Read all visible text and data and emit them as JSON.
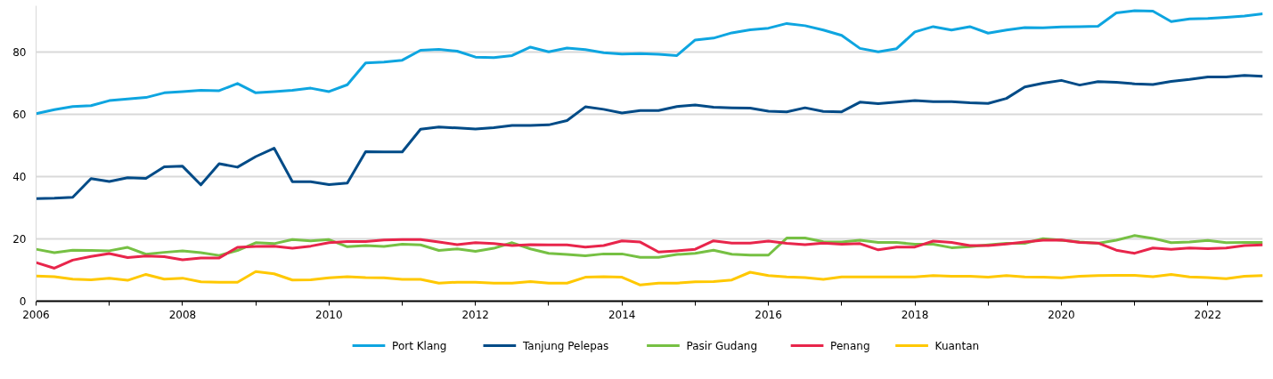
{
  "chart_data": {
    "type": "line",
    "x": [
      2006,
      2006.25,
      2006.5,
      2006.75,
      2007,
      2007.25,
      2007.5,
      2007.75,
      2008,
      2008.25,
      2008.5,
      2008.75,
      2009,
      2009.25,
      2009.5,
      2009.75,
      2010,
      2010.25,
      2010.5,
      2010.75,
      2011,
      2011.25,
      2011.5,
      2011.75,
      2012,
      2012.25,
      2012.5,
      2012.75,
      2013,
      2013.25,
      2013.5,
      2013.75,
      2014,
      2014.25,
      2014.5,
      2014.75,
      2015,
      2015.25,
      2015.5,
      2015.75,
      2016,
      2016.25,
      2016.5,
      2016.75,
      2017,
      2017.25,
      2017.5,
      2017.75,
      2018,
      2018.25,
      2018.5,
      2018.75,
      2019,
      2019.25,
      2019.5,
      2019.75,
      2020,
      2020.25,
      2020.5,
      2020.75,
      2021,
      2021.25,
      2021.5,
      2021.75,
      2022,
      2022.25,
      2022.5,
      2022.75
    ],
    "series": [
      {
        "name": "Port Klang",
        "color": "#0ea5e0",
        "values": [
          60.3,
          61.6,
          62.6,
          62.9,
          64.5,
          65,
          65.5,
          67,
          67.4,
          67.8,
          67.7,
          70,
          67,
          67.4,
          67.8,
          68.5,
          67.4,
          69.6,
          76.6,
          76.9,
          77.5,
          80.7,
          81,
          80.4,
          78.5,
          78.3,
          79,
          81.7,
          80.2,
          81.4,
          80.9,
          79.9,
          79.5,
          79.6,
          79.4,
          79,
          84,
          84.6,
          86.3,
          87.3,
          87.8,
          89.3,
          88.6,
          87.2,
          85.5,
          81.3,
          80.2,
          81.2,
          86.6,
          88.3,
          87.2,
          88.3,
          86.2,
          87.2,
          88,
          87.9,
          88.2,
          88.3,
          88.4,
          92.7,
          93.4,
          93.3,
          89.9,
          90.8,
          90.9,
          91.3,
          91.7,
          92.4
        ]
      },
      {
        "name": "Tanjung Pelepas",
        "color": "#004b87",
        "values": [
          33,
          33.1,
          33.4,
          39.4,
          38.5,
          39.7,
          39.5,
          43.2,
          43.4,
          37.4,
          44.2,
          43.1,
          46.5,
          49.2,
          38.4,
          38.4,
          37.5,
          38,
          48.1,
          48,
          48,
          55.3,
          56,
          55.7,
          55.4,
          55.8,
          56.5,
          56.5,
          56.7,
          58.1,
          62.5,
          61.7,
          60.5,
          61.3,
          61.3,
          62.6,
          63.1,
          62.4,
          62.2,
          62.1,
          61.1,
          60.9,
          62.2,
          61,
          60.9,
          64,
          63.5,
          64,
          64.5,
          64.2,
          64.2,
          63.8,
          63.6,
          65.2,
          68.9,
          70.1,
          71,
          69.5,
          70.6,
          70.4,
          69.9,
          69.7,
          70.7,
          71.3,
          72.1,
          72.1,
          72.6,
          72.3
        ]
      },
      {
        "name": "Pasir Gudang",
        "color": "#76c043",
        "values": [
          16.7,
          15.6,
          16.4,
          16.3,
          16.2,
          17.3,
          15.1,
          15.7,
          16.2,
          15.6,
          14.7,
          16.3,
          18.8,
          18.5,
          19.8,
          19.4,
          19.8,
          17.5,
          17.9,
          17.6,
          18.3,
          18.1,
          16.3,
          16.8,
          16,
          17,
          18.8,
          16.8,
          15.4,
          15,
          14.6,
          15.2,
          15.2,
          14.1,
          14.1,
          15,
          15.4,
          16.4,
          15.1,
          14.8,
          14.8,
          20.3,
          20.3,
          19.1,
          19,
          19.6,
          18.9,
          18.9,
          18.3,
          18.3,
          17.2,
          17.5,
          18.1,
          18.6,
          18.6,
          20.1,
          19.6,
          19,
          18.6,
          19.6,
          21.1,
          20.2,
          18.8,
          19,
          19.5,
          18.8,
          18.9,
          18.9
        ]
      },
      {
        "name": "Penang",
        "color": "#e8254b",
        "values": [
          12.4,
          10.6,
          13.2,
          14.4,
          15.3,
          14,
          14.5,
          14.3,
          13.3,
          13.9,
          13.9,
          17.3,
          17.6,
          17.7,
          17,
          17.7,
          18.8,
          19.2,
          19.2,
          19.7,
          19.8,
          19.8,
          19,
          18.2,
          18.8,
          18.5,
          17.9,
          18.2,
          18.1,
          18.1,
          17.4,
          17.9,
          19.4,
          19,
          15.8,
          16.2,
          16.7,
          19.4,
          18.7,
          18.7,
          19.3,
          18.6,
          18.2,
          18.7,
          18.3,
          18.5,
          16.5,
          17.4,
          17.4,
          19.3,
          18.9,
          17.9,
          17.9,
          18.4,
          19,
          19.6,
          19.7,
          18.9,
          18.7,
          16.4,
          15.4,
          17.1,
          16.7,
          17.1,
          16.9,
          17.1,
          17.9,
          18.1
        ]
      },
      {
        "name": "Kuantan",
        "color": "#ffc800",
        "values": [
          8.1,
          7.9,
          7.1,
          6.9,
          7.4,
          6.7,
          8.6,
          7.1,
          7.4,
          6.2,
          6.1,
          6.1,
          9.5,
          8.8,
          6.8,
          6.9,
          7.5,
          7.9,
          7.6,
          7.5,
          7,
          7,
          5.8,
          6.1,
          6.1,
          5.8,
          5.8,
          6.3,
          5.8,
          5.8,
          7.7,
          7.9,
          7.7,
          5.2,
          5.8,
          5.8,
          6.2,
          6.3,
          6.8,
          9.3,
          8.2,
          7.8,
          7.6,
          7,
          7.8,
          7.8,
          7.8,
          7.8,
          7.8,
          8.2,
          8,
          8,
          7.7,
          8.2,
          7.8,
          7.7,
          7.5,
          8,
          8.2,
          8.3,
          8.3,
          7.9,
          8.6,
          7.8,
          7.6,
          7.2,
          8,
          8.2
        ]
      }
    ],
    "xlim": [
      2006,
      2022.75
    ],
    "xticks": [
      2006,
      {
        "value": 2007,
        "label": null
      },
      2008,
      {
        "value": 2009,
        "label": null
      },
      2010,
      {
        "value": 2011,
        "label": null
      },
      2012,
      {
        "value": 2013,
        "label": null
      },
      2014,
      {
        "value": 2015,
        "label": null
      },
      2016,
      {
        "value": 2017,
        "label": null
      },
      2018,
      {
        "value": 2019,
        "label": null
      },
      2020,
      {
        "value": 2021,
        "label": null
      },
      2022
    ],
    "ylim": [
      0,
      95
    ],
    "yticks": [
      0,
      20,
      40,
      60,
      80
    ],
    "grid": "y",
    "legend": "bottom",
    "marker": "none",
    "line_style": "solid"
  }
}
